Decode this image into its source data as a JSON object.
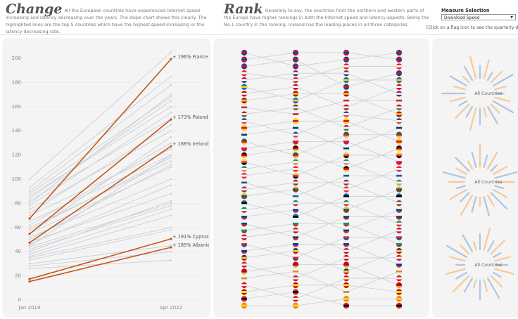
{
  "header": {
    "change_title": "Change",
    "change_text": "All the European countries have experienced Internet speed increasing and latency decreasing over the years. The slope chart shows this clearly. The highlighted lines are the top 5 countries which have the highest speed increasing or the latency decreasing rate.",
    "rank_title": "Rank",
    "rank_text": "Generally to say, the countries from the northern and western parts of the Europe have higher rankings in both the Internet speed and latency aspects. Being the No.1 country in the ranking, Iceland has the leading places in all three categories.",
    "measure_label": "Measure Selection",
    "measure_value": "Download Speed",
    "hint": "[Click on a flag icon to see the quarterly detail of a"
  },
  "radial": {
    "labels": [
      "All Countries",
      "All Countries",
      "All Countries"
    ]
  },
  "chart_data": [
    {
      "type": "line",
      "categories": [
        "Jan 2019",
        "Apr 2022"
      ],
      "ylim": [
        0,
        210
      ],
      "yticks": [
        0,
        20,
        40,
        60,
        80,
        100,
        120,
        140,
        160,
        180,
        200
      ],
      "grid": true,
      "series": [
        {
          "color": "#c9ced6",
          "values": [
            100,
            205
          ]
        },
        {
          "color": "#c9ced6",
          "values": [
            93,
            185
          ]
        },
        {
          "color": "#c9ced6",
          "values": [
            90,
            178
          ]
        },
        {
          "color": "#c9ced6",
          "values": [
            88,
            168
          ]
        },
        {
          "color": "#c9ced6",
          "values": [
            86,
            160
          ]
        },
        {
          "color": "#c9ced6",
          "values": [
            84,
            165
          ]
        },
        {
          "color": "#c9ced6",
          "values": [
            82,
            150
          ]
        },
        {
          "color": "#c9ced6",
          "values": [
            80,
            170
          ]
        },
        {
          "color": "#c9ced6",
          "values": [
            78,
            155
          ]
        },
        {
          "color": "#c9ced6",
          "values": [
            75,
            140
          ]
        },
        {
          "color": "#c9ced6",
          "values": [
            72,
            145
          ]
        },
        {
          "color": "#c9ced6",
          "values": [
            70,
            125
          ]
        },
        {
          "color": "#c9ced6",
          "values": [
            65,
            120
          ]
        },
        {
          "color": "#c9ced6",
          "values": [
            62,
            130
          ]
        },
        {
          "color": "#c9ced6",
          "values": [
            60,
            115
          ]
        },
        {
          "color": "#c9ced6",
          "values": [
            58,
            118
          ]
        },
        {
          "color": "#c9ced6",
          "values": [
            55,
            110
          ]
        },
        {
          "color": "#c9ced6",
          "values": [
            52,
            100
          ]
        },
        {
          "color": "#c9ced6",
          "values": [
            50,
            112
          ]
        },
        {
          "color": "#c9ced6",
          "values": [
            48,
            88
          ]
        },
        {
          "color": "#c9ced6",
          "values": [
            46,
            95
          ]
        },
        {
          "color": "#c9ced6",
          "values": [
            44,
            80
          ]
        },
        {
          "color": "#c9ced6",
          "values": [
            42,
            78
          ]
        },
        {
          "color": "#c9ced6",
          "values": [
            40,
            82
          ]
        },
        {
          "color": "#c9ced6",
          "values": [
            38,
            75
          ]
        },
        {
          "color": "#c9ced6",
          "values": [
            36,
            70
          ]
        },
        {
          "color": "#c9ced6",
          "values": [
            35,
            60
          ]
        },
        {
          "color": "#c9ced6",
          "values": [
            33,
            58
          ]
        },
        {
          "color": "#c9ced6",
          "values": [
            30,
            45
          ]
        },
        {
          "color": "#c9ced6",
          "values": [
            28,
            40
          ]
        },
        {
          "color": "#c9ced6",
          "values": [
            26,
            33
          ]
        },
        {
          "color": "#c9ced6",
          "values": [
            45,
            120
          ]
        },
        {
          "color": "#c9ced6",
          "values": [
            55,
            135
          ]
        },
        {
          "color": "#c4571b",
          "values": [
            67.4,
            199.4
          ],
          "label": "+ 196% France"
        },
        {
          "color": "#c4571b",
          "values": [
            54.7,
            149.4
          ],
          "label": "+ 173% Poland"
        },
        {
          "color": "#c4571b",
          "values": [
            47.5,
            127.3
          ],
          "label": "+ 168% Ireland"
        },
        {
          "color": "#c4571b",
          "values": [
            17.4,
            50.6
          ],
          "label": "+ 191% Cyprus"
        },
        {
          "color": "#c4571b",
          "values": [
            15.3,
            43.6
          ],
          "label": "+ 185% Albania"
        }
      ]
    },
    {
      "type": "bump",
      "ylim": [
        1,
        38
      ],
      "line_color": "#c9ced6",
      "series": [
        {
          "colors": [
            "#1f3f8f",
            "#c8102e",
            "#1f3f8f"
          ],
          "values": [
            1,
            3,
            2,
            1
          ]
        },
        {
          "colors": [
            "#c8102e",
            "#1f3f8f",
            "#c8102e"
          ],
          "values": [
            2,
            1,
            1,
            2
          ]
        },
        {
          "colors": [
            "#1f3f8f",
            "#c8102e",
            "#1f3f8f"
          ],
          "values": [
            3,
            2,
            6,
            4
          ]
        },
        {
          "colors": [
            "#d52b1e",
            "#ffffff",
            "#d52b1e"
          ],
          "values": [
            4,
            5,
            3,
            3
          ]
        },
        {
          "colors": [
            "#c8102e",
            "#ffffff",
            "#1f3f8f"
          ],
          "values": [
            5,
            4,
            4,
            7
          ]
        },
        {
          "colors": [
            "#006aa7",
            "#fecc00",
            "#006aa7"
          ],
          "values": [
            6,
            8,
            5,
            5
          ]
        },
        {
          "colors": [
            "#c60c30",
            "#ffffff",
            "#c60c30"
          ],
          "values": [
            7,
            6,
            9,
            6
          ]
        },
        {
          "colors": [
            "#aa151b",
            "#f1bf00",
            "#aa151b"
          ],
          "values": [
            8,
            7,
            7,
            10
          ]
        },
        {
          "colors": [
            "#ffffff",
            "#d52b1e",
            "#ffffff"
          ],
          "values": [
            9,
            10,
            8,
            8
          ]
        },
        {
          "colors": [
            "#ce1126",
            "#ffffff",
            "#477050"
          ],
          "values": [
            10,
            9,
            12,
            9
          ]
        },
        {
          "colors": [
            "#0055a4",
            "#ffffff",
            "#ef4135"
          ],
          "values": [
            11,
            13,
            10,
            11
          ]
        },
        {
          "colors": [
            "#fcdd09",
            "#da121a",
            "#fcdd09"
          ],
          "values": [
            12,
            11,
            11,
            14
          ]
        },
        {
          "colors": [
            "#ffffff",
            "#003580",
            "#ffffff"
          ],
          "values": [
            13,
            12,
            15,
            12
          ]
        },
        {
          "colors": [
            "#006a44",
            "#c1272d",
            "#fdb913"
          ],
          "values": [
            14,
            16,
            13,
            13
          ]
        },
        {
          "colors": [
            "#ffffff",
            "#dc143c",
            "#dc143c"
          ],
          "values": [
            15,
            14,
            14,
            17
          ]
        },
        {
          "colors": [
            "#000000",
            "#dd0000",
            "#ffce00"
          ],
          "values": [
            16,
            15,
            18,
            15
          ]
        },
        {
          "colors": [
            "#fdda24",
            "#ef3340",
            "#000000"
          ],
          "values": [
            17,
            19,
            16,
            16
          ]
        },
        {
          "colors": [
            "#169b62",
            "#ffffff",
            "#ff883e"
          ],
          "values": [
            18,
            17,
            17,
            20
          ]
        },
        {
          "colors": [
            "#ed2939",
            "#ffffff",
            "#ed2939"
          ],
          "values": [
            19,
            18,
            21,
            18
          ]
        },
        {
          "colors": [
            "#ffffff",
            "#0d5eaf",
            "#ffffff"
          ],
          "values": [
            20,
            22,
            19,
            19
          ]
        },
        {
          "colors": [
            "#9e3039",
            "#ffffff",
            "#9e3039"
          ],
          "values": [
            21,
            20,
            20,
            23
          ]
        },
        {
          "colors": [
            "#fdb913",
            "#006a44",
            "#c1272d"
          ],
          "values": [
            22,
            21,
            24,
            21
          ]
        },
        {
          "colors": [
            "#0072ce",
            "#000000",
            "#ffffff"
          ],
          "values": [
            23,
            25,
            22,
            22
          ]
        },
        {
          "colors": [
            "#009246",
            "#ffffff",
            "#ce2b37"
          ],
          "values": [
            24,
            23,
            23,
            26
          ]
        },
        {
          "colors": [
            "#ffffff",
            "#0c4076",
            "#c6363c"
          ],
          "values": [
            25,
            24,
            27,
            24
          ]
        },
        {
          "colors": [
            "#ffffff",
            "#11457e",
            "#d7141a"
          ],
          "values": [
            26,
            28,
            25,
            25
          ]
        },
        {
          "colors": [
            "#ffffff",
            "#00966e",
            "#d62612"
          ],
          "values": [
            27,
            26,
            26,
            29
          ]
        },
        {
          "colors": [
            "#c8102e",
            "#ffffff",
            "#c8102e"
          ],
          "values": [
            28,
            27,
            30,
            27
          ]
        },
        {
          "colors": [
            "#ffffff",
            "#ee1c25",
            "#0b4ea2"
          ],
          "values": [
            29,
            31,
            28,
            28
          ]
        },
        {
          "colors": [
            "#ffffff",
            "#0039a6",
            "#d52b1e"
          ],
          "values": [
            30,
            29,
            29,
            32
          ]
        },
        {
          "colors": [
            "#002b7f",
            "#fcd116",
            "#ce1126"
          ],
          "values": [
            31,
            30,
            33,
            30
          ]
        },
        {
          "colors": [
            "#ce1126",
            "#ffffff",
            "#ce1126"
          ],
          "values": [
            32,
            34,
            31,
            31
          ]
        },
        {
          "colors": [
            "#c40308",
            "#c40308",
            "#d4af37"
          ],
          "values": [
            33,
            32,
            32,
            35
          ]
        },
        {
          "colors": [
            "#ffffff",
            "#d58a2b",
            "#ffffff"
          ],
          "values": [
            34,
            33,
            36,
            33
          ]
        },
        {
          "colors": [
            "#e30a17",
            "#ffffff",
            "#e30a17"
          ],
          "values": [
            35,
            37,
            34,
            34
          ]
        },
        {
          "colors": [
            "#d20000",
            "#ffe600",
            "#d20000"
          ],
          "values": [
            36,
            35,
            35,
            36
          ]
        },
        {
          "colors": [
            "#e41e20",
            "#000000",
            "#e41e20"
          ],
          "values": [
            37,
            36,
            38,
            38
          ]
        },
        {
          "colors": [
            "#ff7a00",
            "#ffd200",
            "#ff7a00"
          ],
          "values": [
            38,
            38,
            37,
            37
          ]
        }
      ]
    }
  ]
}
